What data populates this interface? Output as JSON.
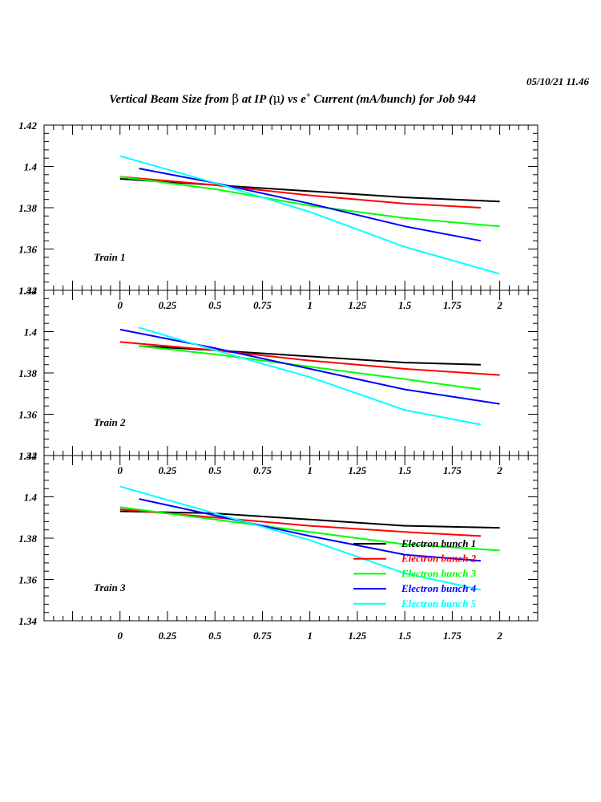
{
  "header": {
    "timestamp": "05/10/21   11.46",
    "title_part1": "Vertical Beam Size from ",
    "title_beta": "β",
    "title_part2": " at IP (",
    "title_mu": "μ",
    "title_part3": ") vs e",
    "title_sup": "+",
    "title_part4": " Current (mA/bunch) for Job 944"
  },
  "chart_data": [
    {
      "type": "line",
      "panel_label": "Train 1",
      "xlim": [
        -0.4,
        2.2
      ],
      "ylim": [
        1.34,
        1.42
      ],
      "xticks": [
        "0",
        "0.25",
        "0.5",
        "0.75",
        "1",
        "1.25",
        "1.5",
        "1.75",
        "2"
      ],
      "yticks": [
        "1.34",
        "1.36",
        "1.38",
        "1.4",
        "1.42"
      ],
      "series": [
        {
          "name": "Electron bunch 1",
          "color": "#000000",
          "x": [
            0,
            0.5,
            1,
            1.5,
            2
          ],
          "y": [
            1.394,
            1.391,
            1.388,
            1.385,
            1.383
          ]
        },
        {
          "name": "Electron bunch 2",
          "color": "#ff0000",
          "x": [
            0,
            0.5,
            1,
            1.5,
            1.9
          ],
          "y": [
            1.395,
            1.391,
            1.386,
            1.382,
            1.38
          ]
        },
        {
          "name": "Electron bunch 3",
          "color": "#00ff00",
          "x": [
            0,
            0.5,
            1,
            1.5,
            2
          ],
          "y": [
            1.395,
            1.389,
            1.381,
            1.375,
            1.371
          ]
        },
        {
          "name": "Electron bunch 4",
          "color": "#0000ff",
          "x": [
            0.1,
            0.5,
            1,
            1.5,
            1.9
          ],
          "y": [
            1.399,
            1.392,
            1.382,
            1.371,
            1.364
          ]
        },
        {
          "name": "Electron bunch 5",
          "color": "#00ffff",
          "x": [
            0,
            0.5,
            1,
            1.5,
            2
          ],
          "y": [
            1.405,
            1.392,
            1.378,
            1.361,
            1.348
          ]
        }
      ]
    },
    {
      "type": "line",
      "panel_label": "Train 2",
      "xlim": [
        -0.4,
        2.2
      ],
      "ylim": [
        1.34,
        1.42
      ],
      "xticks": [
        "0",
        "0.25",
        "0.5",
        "0.75",
        "1",
        "1.25",
        "1.5",
        "1.75",
        "2"
      ],
      "yticks": [
        "1.34",
        "1.36",
        "1.38",
        "1.4",
        "1.42"
      ],
      "series": [
        {
          "name": "Electron bunch 1",
          "color": "#000000",
          "x": [
            0.1,
            0.5,
            1,
            1.5,
            1.9
          ],
          "y": [
            1.393,
            1.391,
            1.388,
            1.385,
            1.384
          ]
        },
        {
          "name": "Electron bunch 2",
          "color": "#ff0000",
          "x": [
            0,
            0.5,
            1,
            1.5,
            2
          ],
          "y": [
            1.395,
            1.391,
            1.386,
            1.382,
            1.379
          ]
        },
        {
          "name": "Electron bunch 3",
          "color": "#00ff00",
          "x": [
            0.1,
            0.5,
            1,
            1.5,
            1.9
          ],
          "y": [
            1.393,
            1.389,
            1.383,
            1.377,
            1.372
          ]
        },
        {
          "name": "Electron bunch 4",
          "color": "#0000ff",
          "x": [
            0,
            0.5,
            1,
            1.5,
            2
          ],
          "y": [
            1.401,
            1.392,
            1.382,
            1.372,
            1.365
          ]
        },
        {
          "name": "Electron bunch 5",
          "color": "#00ffff",
          "x": [
            0.1,
            0.5,
            1,
            1.5,
            1.9
          ],
          "y": [
            1.402,
            1.391,
            1.378,
            1.362,
            1.355
          ]
        }
      ]
    },
    {
      "type": "line",
      "panel_label": "Train 3",
      "xlim": [
        -0.4,
        2.2
      ],
      "ylim": [
        1.34,
        1.42
      ],
      "xticks": [
        "0",
        "0.25",
        "0.5",
        "0.75",
        "1",
        "1.25",
        "1.5",
        "1.75",
        "2"
      ],
      "yticks": [
        "1.34",
        "1.36",
        "1.38",
        "1.4",
        "1.42"
      ],
      "legend_position": "bottom-right",
      "series": [
        {
          "name": "Electron bunch 1",
          "color": "#000000",
          "x": [
            0,
            0.5,
            1,
            1.5,
            2
          ],
          "y": [
            1.393,
            1.392,
            1.389,
            1.386,
            1.385
          ]
        },
        {
          "name": "Electron bunch 2",
          "color": "#ff0000",
          "x": [
            0,
            0.5,
            1,
            1.5,
            1.9
          ],
          "y": [
            1.394,
            1.39,
            1.386,
            1.383,
            1.381
          ]
        },
        {
          "name": "Electron bunch 3",
          "color": "#00ff00",
          "x": [
            0,
            0.5,
            1,
            1.5,
            2
          ],
          "y": [
            1.395,
            1.389,
            1.383,
            1.377,
            1.374
          ]
        },
        {
          "name": "Electron bunch 4",
          "color": "#0000ff",
          "x": [
            0.1,
            0.5,
            1,
            1.5,
            1.9
          ],
          "y": [
            1.399,
            1.391,
            1.381,
            1.372,
            1.369
          ]
        },
        {
          "name": "Electron bunch 5",
          "color": "#00ffff",
          "x": [
            0,
            0.5,
            1,
            1.5,
            1.9
          ],
          "y": [
            1.405,
            1.392,
            1.379,
            1.363,
            1.355
          ]
        }
      ]
    }
  ]
}
